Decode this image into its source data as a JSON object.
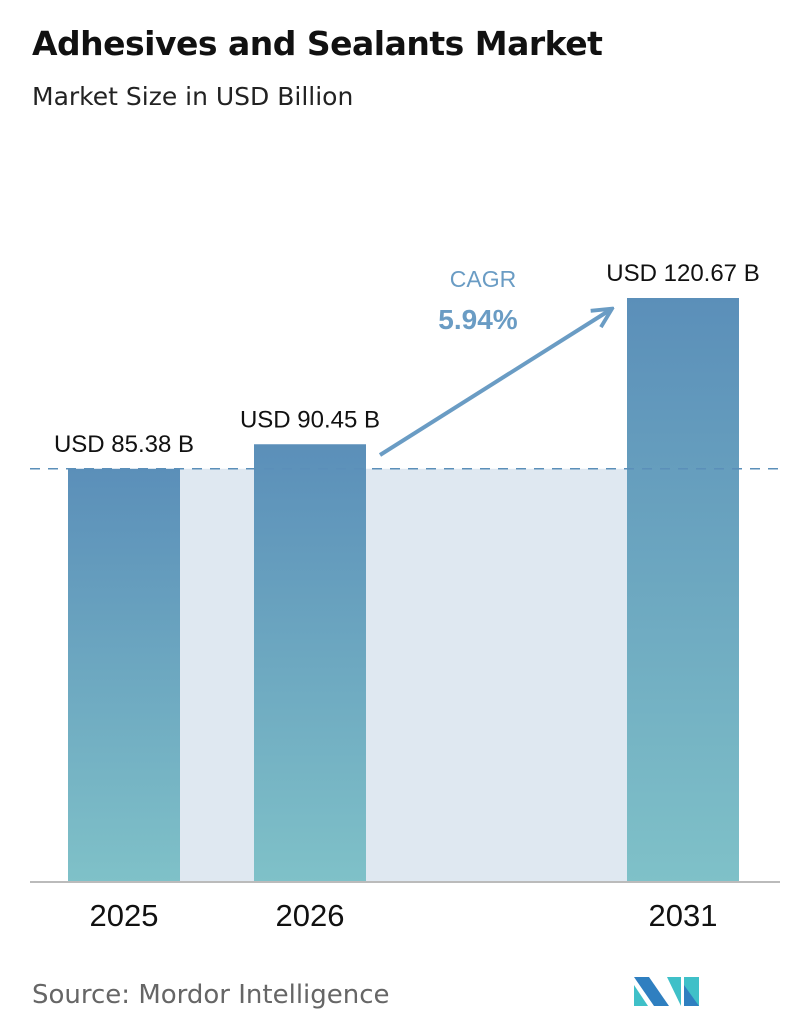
{
  "title": "Adhesives and Sealants Market",
  "subtitle": "Market Size in USD Billion",
  "source": "Source:  Mordor Intelligence",
  "logo_text": "Mordor Intelligence",
  "colors": {
    "bar_top": "#5b8fb9",
    "bar_bottom": "#7fc1c8",
    "band": "#dfe8f1",
    "accent": "#6a9cc4",
    "logo_dark": "#2f7fc0",
    "logo_light": "#3fc0c8"
  },
  "chart_data": {
    "type": "bar",
    "categories": [
      "2025",
      "2026",
      "2031"
    ],
    "values": [
      85.38,
      90.45,
      120.67
    ],
    "data_labels": [
      "USD 85.38 B",
      "USD 90.45 B",
      "USD 120.67 B"
    ],
    "title": "Adhesives and Sealants Market",
    "subtitle": "Market Size in USD Billion",
    "ylim": [
      0,
      120.67
    ],
    "grid": false,
    "reference_line": 85.38,
    "annotation": {
      "label": "CAGR",
      "value": "5.94%"
    }
  }
}
